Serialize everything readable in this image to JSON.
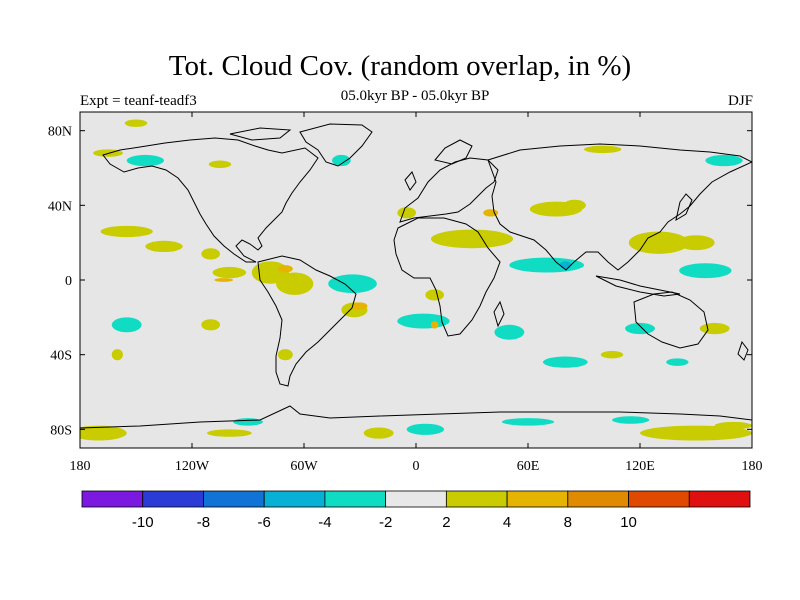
{
  "title": "Tot. Cloud Cov. (random overlap, in %)",
  "subtitle": "05.0kyr BP - 05.0kyr BP",
  "left_label": "Expt = teanf-teadf3",
  "right_label": "DJF",
  "map": {
    "lon_ticks": [
      {
        "value": -180,
        "label": "180"
      },
      {
        "value": -120,
        "label": "120W"
      },
      {
        "value": -60,
        "label": "60W"
      },
      {
        "value": 0,
        "label": "0"
      },
      {
        "value": 60,
        "label": "60E"
      },
      {
        "value": 120,
        "label": "120E"
      },
      {
        "value": 180,
        "label": "180"
      }
    ],
    "lat_ticks": [
      {
        "value": 80,
        "label": "80N"
      },
      {
        "value": 40,
        "label": "40N"
      },
      {
        "value": 0,
        "label": "0"
      },
      {
        "value": -40,
        "label": "40S"
      },
      {
        "value": -80,
        "label": "80S"
      }
    ],
    "lat_range": [
      -90,
      90
    ],
    "lon_range": [
      -180,
      180
    ],
    "background_color": "#e6e6e6"
  },
  "colorbar": {
    "colors": [
      "#7b19e0",
      "#2a3bd6",
      "#1273d6",
      "#08b0d6",
      "#10dcc4",
      "#e8e8e8",
      "#c8cc00",
      "#e5b400",
      "#e08a00",
      "#e04a00",
      "#e01010"
    ],
    "labels": [
      "-10",
      "-8",
      "-6",
      "-4",
      "-2",
      "2",
      "4",
      "8",
      "10"
    ]
  },
  "chart_data": {
    "type": "heatmap",
    "title": "Tot. Cloud Cov. (random overlap, in %)",
    "subtitle": "05.0kyr BP - 05.0kyr BP",
    "season": "DJF",
    "levels": [
      -10,
      -8,
      -6,
      -4,
      -2,
      2,
      4,
      8,
      10
    ],
    "regions": [
      {
        "lon": -170,
        "lat": -82,
        "rx": 15,
        "ry": 4,
        "level": 3
      },
      {
        "lon": -150,
        "lat": 84,
        "rx": 6,
        "ry": 2,
        "level": 3
      },
      {
        "lon": -165,
        "lat": 68,
        "rx": 8,
        "ry": 2,
        "level": 3
      },
      {
        "lon": -145,
        "lat": 64,
        "rx": 10,
        "ry": 3,
        "level": -3
      },
      {
        "lon": -155,
        "lat": 26,
        "rx": 14,
        "ry": 3,
        "level": 3
      },
      {
        "lon": -135,
        "lat": 18,
        "rx": 10,
        "ry": 3,
        "level": 3
      },
      {
        "lon": -110,
        "lat": 14,
        "rx": 5,
        "ry": 3,
        "level": 3
      },
      {
        "lon": -155,
        "lat": -24,
        "rx": 8,
        "ry": 4,
        "level": -3
      },
      {
        "lon": -160,
        "lat": -40,
        "rx": 3,
        "ry": 3,
        "level": 3
      },
      {
        "lon": -100,
        "lat": 4,
        "rx": 9,
        "ry": 3,
        "level": 3
      },
      {
        "lon": -103,
        "lat": 0,
        "rx": 5,
        "ry": 1,
        "level": 4
      },
      {
        "lon": -78,
        "lat": 4,
        "rx": 10,
        "ry": 6,
        "level": 3
      },
      {
        "lon": -70,
        "lat": 6,
        "rx": 4,
        "ry": 2,
        "level": 4
      },
      {
        "lon": -65,
        "lat": -2,
        "rx": 10,
        "ry": 6,
        "level": 3
      },
      {
        "lon": -34,
        "lat": -2,
        "rx": 13,
        "ry": 5,
        "level": -3
      },
      {
        "lon": -33,
        "lat": -16,
        "rx": 7,
        "ry": 4,
        "level": 3
      },
      {
        "lon": -30,
        "lat": -14,
        "rx": 4,
        "ry": 2,
        "level": 4
      },
      {
        "lon": -110,
        "lat": -24,
        "rx": 5,
        "ry": 3,
        "level": 3
      },
      {
        "lon": -70,
        "lat": -40,
        "rx": 4,
        "ry": 3,
        "level": 3
      },
      {
        "lon": -105,
        "lat": 62,
        "rx": 6,
        "ry": 2,
        "level": 3
      },
      {
        "lon": -40,
        "lat": 64,
        "rx": 5,
        "ry": 3,
        "level": -3
      },
      {
        "lon": -5,
        "lat": 36,
        "rx": 5,
        "ry": 3,
        "level": 3
      },
      {
        "lon": 30,
        "lat": 22,
        "rx": 22,
        "ry": 5,
        "level": 3
      },
      {
        "lon": 75,
        "lat": 38,
        "rx": 14,
        "ry": 4,
        "level": 3
      },
      {
        "lon": 40,
        "lat": 36,
        "rx": 4,
        "ry": 2,
        "level": 4
      },
      {
        "lon": 70,
        "lat": 8,
        "rx": 20,
        "ry": 4,
        "level": -3
      },
      {
        "lon": 80,
        "lat": 8,
        "rx": 3,
        "ry": 2,
        "level": -4
      },
      {
        "lon": 10,
        "lat": -8,
        "rx": 5,
        "ry": 3,
        "level": 3
      },
      {
        "lon": 4,
        "lat": -22,
        "rx": 14,
        "ry": 4,
        "level": -3
      },
      {
        "lon": 10,
        "lat": -24,
        "rx": 2,
        "ry": 2,
        "level": 4
      },
      {
        "lon": 50,
        "lat": -28,
        "rx": 8,
        "ry": 4,
        "level": -3
      },
      {
        "lon": 85,
        "lat": 40,
        "rx": 6,
        "ry": 3,
        "level": 3
      },
      {
        "lon": 130,
        "lat": 20,
        "rx": 16,
        "ry": 6,
        "level": 3
      },
      {
        "lon": 150,
        "lat": 20,
        "rx": 10,
        "ry": 4,
        "level": 3
      },
      {
        "lon": 155,
        "lat": 5,
        "rx": 14,
        "ry": 4,
        "level": -3
      },
      {
        "lon": 120,
        "lat": -26,
        "rx": 8,
        "ry": 3,
        "level": -3
      },
      {
        "lon": 160,
        "lat": -26,
        "rx": 8,
        "ry": 3,
        "level": 3
      },
      {
        "lon": 80,
        "lat": -44,
        "rx": 12,
        "ry": 3,
        "level": -3
      },
      {
        "lon": 140,
        "lat": -44,
        "rx": 6,
        "ry": 2,
        "level": -3
      },
      {
        "lon": 105,
        "lat": -40,
        "rx": 6,
        "ry": 2,
        "level": 3
      },
      {
        "lon": 100,
        "lat": 70,
        "rx": 10,
        "ry": 2,
        "level": 3
      },
      {
        "lon": 165,
        "lat": 64,
        "rx": 10,
        "ry": 3,
        "level": -3
      },
      {
        "lon": 150,
        "lat": -82,
        "rx": 30,
        "ry": 4,
        "level": 3
      },
      {
        "lon": 5,
        "lat": -80,
        "rx": 10,
        "ry": 3,
        "level": -3
      },
      {
        "lon": 60,
        "lat": -76,
        "rx": 14,
        "ry": 2,
        "level": -3
      },
      {
        "lon": -20,
        "lat": -82,
        "rx": 8,
        "ry": 3,
        "level": 3
      },
      {
        "lon": -100,
        "lat": -82,
        "rx": 12,
        "ry": 2,
        "level": 3
      },
      {
        "lon": -90,
        "lat": -76,
        "rx": 8,
        "ry": 2,
        "level": -3
      },
      {
        "lon": 115,
        "lat": -75,
        "rx": 10,
        "ry": 2,
        "level": -3
      },
      {
        "lon": 170,
        "lat": -78,
        "rx": 10,
        "ry": 2,
        "level": 3
      }
    ]
  }
}
